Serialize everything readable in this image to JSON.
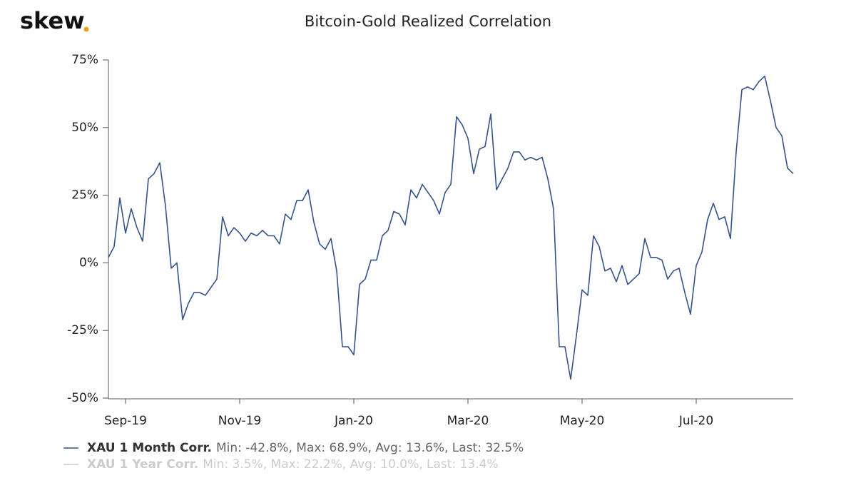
{
  "logo": "skew",
  "chart_data": {
    "type": "line",
    "title": "Bitcoin-Gold Realized Correlation",
    "categories": [
      null,
      null,
      null,
      "Sep-19",
      null,
      null,
      null,
      null,
      null,
      null,
      null,
      null,
      null,
      null,
      null,
      null,
      null,
      null,
      null,
      null,
      null,
      null,
      null,
      "Nov-19",
      null,
      null,
      null,
      null,
      null,
      null,
      null,
      null,
      null,
      null,
      null,
      null,
      null,
      null,
      null,
      null,
      null,
      null,
      null,
      "Jan-20",
      null,
      null,
      null,
      null,
      null,
      null,
      null,
      null,
      null,
      null,
      null,
      null,
      null,
      null,
      null,
      null,
      null,
      null,
      null,
      "Mar-20",
      null,
      null,
      null,
      null,
      null,
      null,
      null,
      null,
      null,
      null,
      null,
      null,
      null,
      null,
      null,
      null,
      null,
      null,
      null,
      "May-20",
      null,
      null,
      null,
      null,
      null,
      null,
      null,
      null,
      null,
      null,
      null,
      null,
      null,
      null,
      null,
      null,
      null,
      null,
      null,
      "Jul-20",
      null,
      null,
      null,
      null,
      null,
      null,
      null,
      null,
      null,
      null,
      null,
      null,
      null,
      null,
      null,
      null,
      null
    ],
    "series": [
      {
        "name": "XAU 1 Month Corr.",
        "stats": "Min: -42.8%, Max: 68.9%, Avg: 13.6%, Last: 32.5%",
        "color": "#34538a",
        "values": [
          2,
          6,
          24,
          11,
          20,
          13,
          8,
          31,
          33,
          37,
          21,
          -2,
          0,
          -21,
          -15,
          -11,
          -11,
          -12,
          -9,
          -6,
          17,
          10,
          13,
          11,
          8,
          11,
          10,
          12,
          10,
          10,
          7,
          18,
          16,
          23,
          23,
          27,
          15,
          7,
          5,
          9,
          -3,
          -31,
          -31,
          -34,
          -8,
          -6,
          1,
          1,
          10,
          12,
          19,
          18,
          14,
          27,
          24,
          29,
          26,
          23,
          18,
          26,
          29,
          54,
          51,
          46,
          33,
          42,
          43,
          55,
          27,
          31,
          35,
          41,
          41,
          38,
          39,
          38,
          39,
          31,
          20,
          -31,
          -31,
          -43,
          -27,
          -10,
          -12,
          10,
          6,
          -3,
          -2,
          -7,
          -1,
          -8,
          -6,
          -4,
          9,
          2,
          2,
          1,
          -6,
          -3,
          -2,
          -11,
          -19,
          -1,
          4,
          16,
          22,
          16,
          17,
          9,
          41,
          64,
          65,
          64,
          67,
          69,
          60,
          50,
          47,
          35,
          33
        ]
      },
      {
        "name": "XAU 1 Year Corr.",
        "stats": "Min: 3.5%, Max: 22.2%, Avg: 10.0%, Last: 13.4%",
        "color": "#cccccc",
        "hidden": true
      }
    ],
    "ylim": [
      -50,
      75
    ],
    "yticks": [
      {
        "value": -50,
        "label": "-50%"
      },
      {
        "value": -25,
        "label": "-25%"
      },
      {
        "value": 0,
        "label": "0%"
      },
      {
        "value": 25,
        "label": "25%"
      },
      {
        "value": 50,
        "label": "50%"
      },
      {
        "value": 75,
        "label": "75%"
      }
    ],
    "grid": false
  }
}
